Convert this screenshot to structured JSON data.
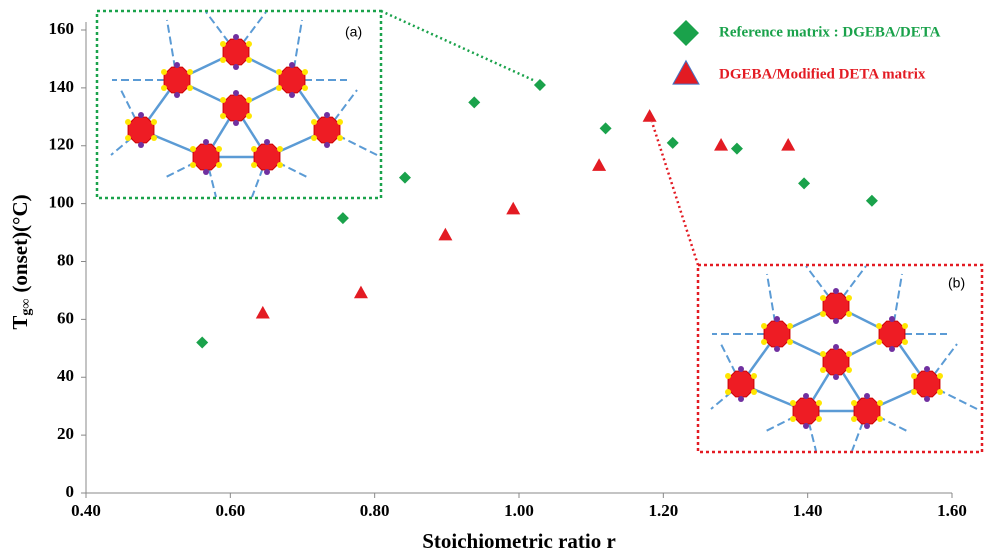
{
  "chart_data": {
    "type": "scatter",
    "x_label": "Stoichiometric ratio r",
    "y_label": "T",
    "y_label_sub": "g∞",
    "y_label_rest": "(onset)(°C)",
    "xlim": [
      0.4,
      1.6
    ],
    "xticks": [
      {
        "value": 0.4,
        "label": "0.40"
      },
      {
        "value": 0.6,
        "label": "0.60"
      },
      {
        "value": 0.8,
        "label": "0.80"
      },
      {
        "value": 1.0,
        "label": "1.00"
      },
      {
        "value": 1.2,
        "label": "1.20"
      },
      {
        "value": 1.4,
        "label": "1.40"
      },
      {
        "value": 1.6,
        "label": "1.60"
      }
    ],
    "ylim": [
      0,
      160
    ],
    "yticks": [
      0,
      20,
      40,
      60,
      80,
      100,
      120,
      140,
      160
    ],
    "series": [
      {
        "name": "Reference matrix : DGEBA/DETA",
        "color": "#1aa24b",
        "marker": "diamond",
        "x": [
          0.561,
          0.756,
          0.842,
          0.938,
          1.029,
          1.12,
          1.213,
          1.302,
          1.395,
          1.489
        ],
        "values": [
          52,
          95,
          109,
          135,
          141,
          126,
          121,
          119,
          107,
          101
        ]
      },
      {
        "name": "DGEBA/Modified DETA matrix",
        "color": "#e31b23",
        "marker": "triangle",
        "x": [
          0.645,
          0.781,
          0.898,
          0.992,
          1.111,
          1.181,
          1.28,
          1.373
        ],
        "values": [
          62,
          69,
          89,
          98,
          113,
          130,
          120,
          120
        ]
      }
    ],
    "annotations": [
      "(a)",
      "(b)"
    ]
  }
}
